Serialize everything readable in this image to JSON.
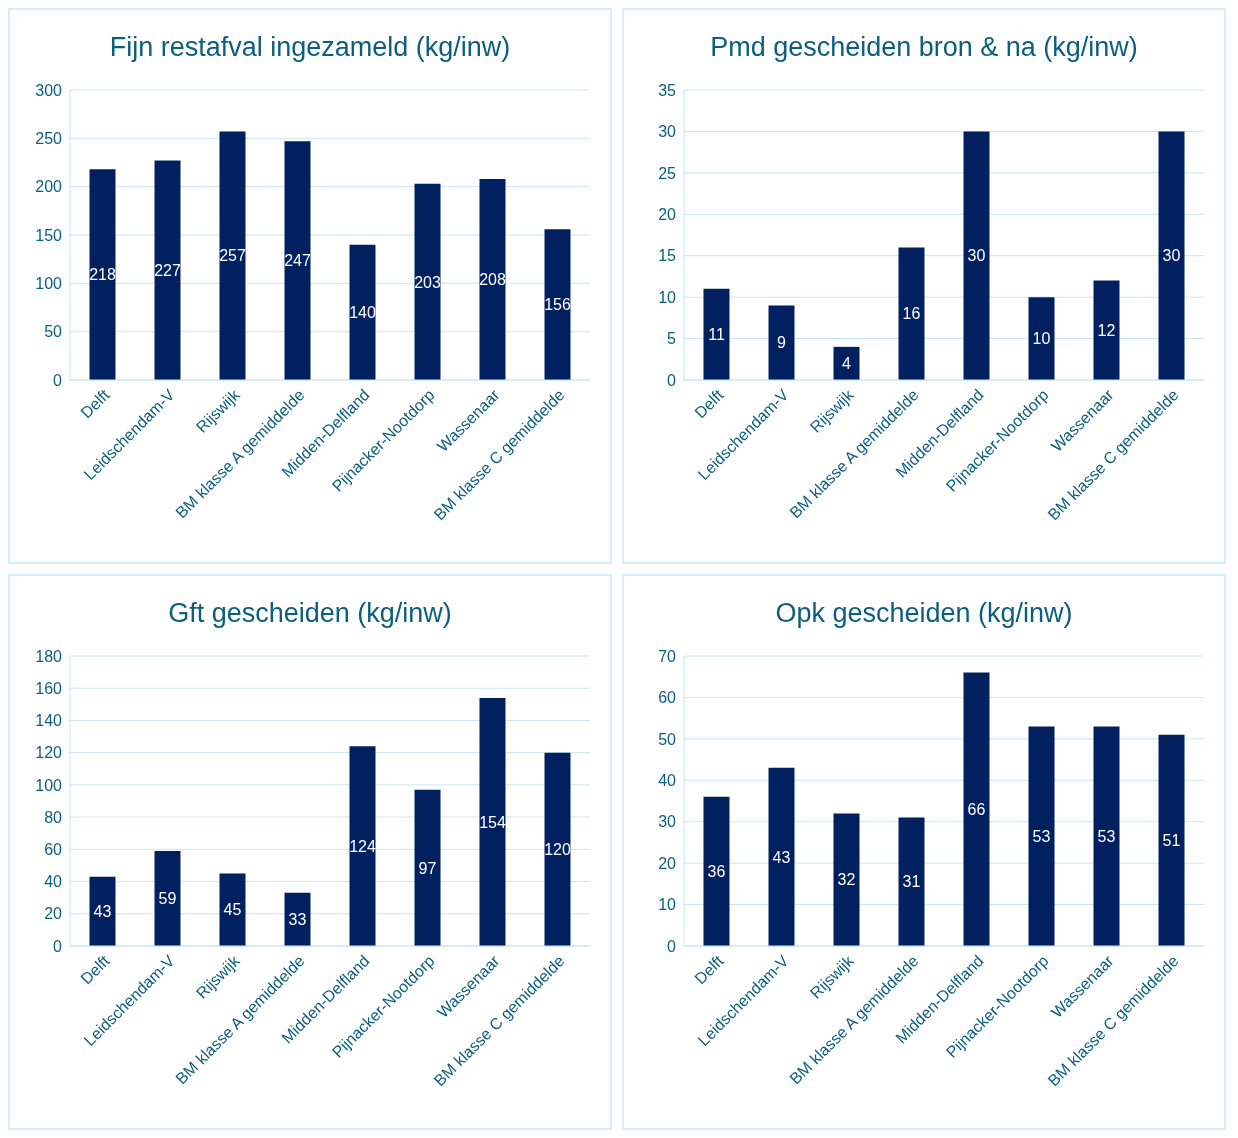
{
  "chart_data": [
    {
      "type": "bar",
      "title": "Fijn restafval ingezameld (kg/inw)",
      "categories": [
        "Delft",
        "Leidschendam-V",
        "Rijswijk",
        "BM klasse A gemiddelde",
        "Midden-Delfland",
        "Pijnacker-Nootdorp",
        "Wassenaar",
        "BM klasse C gemiddelde"
      ],
      "values": [
        218,
        227,
        257,
        247,
        140,
        203,
        208,
        156
      ],
      "color": "#002060",
      "ylim": [
        0,
        300
      ],
      "yticks": [
        0,
        50,
        100,
        150,
        200,
        250,
        300
      ],
      "grid": "y",
      "data_labels": true
    },
    {
      "type": "bar",
      "title": "Pmd gescheiden bron & na (kg/inw)",
      "categories": [
        "Delft",
        "Leidschendam-V",
        "Rijswijk",
        "BM klasse A gemiddelde",
        "Midden-Delfland",
        "Pijnacker-Nootdorp",
        "Wassenaar",
        "BM klasse C gemiddelde"
      ],
      "values": [
        11,
        9,
        4,
        16,
        30,
        10,
        12,
        30
      ],
      "color": "#002060",
      "ylim": [
        0,
        35
      ],
      "yticks": [
        0,
        5,
        10,
        15,
        20,
        25,
        30,
        35
      ],
      "grid": "y",
      "data_labels": true
    },
    {
      "type": "bar",
      "title": "Gft gescheiden (kg/inw)",
      "categories": [
        "Delft",
        "Leidschendam-V",
        "Rijswijk",
        "BM klasse A gemiddelde",
        "Midden-Delfland",
        "Pijnacker-Nootdorp",
        "Wassenaar",
        "BM klasse C gemiddelde"
      ],
      "values": [
        43,
        59,
        45,
        33,
        124,
        97,
        154,
        120
      ],
      "color": "#002060",
      "ylim": [
        0,
        180
      ],
      "yticks": [
        0,
        20,
        40,
        60,
        80,
        100,
        120,
        140,
        160,
        180
      ],
      "grid": "y",
      "data_labels": true
    },
    {
      "type": "bar",
      "title": "Opk gescheiden (kg/inw)",
      "categories": [
        "Delft",
        "Leidschendam-V",
        "Rijswijk",
        "BM klasse A gemiddelde",
        "Midden-Delfland",
        "Pijnacker-Nootdorp",
        "Wassenaar",
        "BM klasse C gemiddelde"
      ],
      "values": [
        36,
        43,
        32,
        31,
        66,
        53,
        53,
        51
      ],
      "color": "#002060",
      "ylim": [
        0,
        70
      ],
      "yticks": [
        0,
        10,
        20,
        30,
        40,
        50,
        60,
        70
      ],
      "grid": "y",
      "data_labels": true
    }
  ]
}
